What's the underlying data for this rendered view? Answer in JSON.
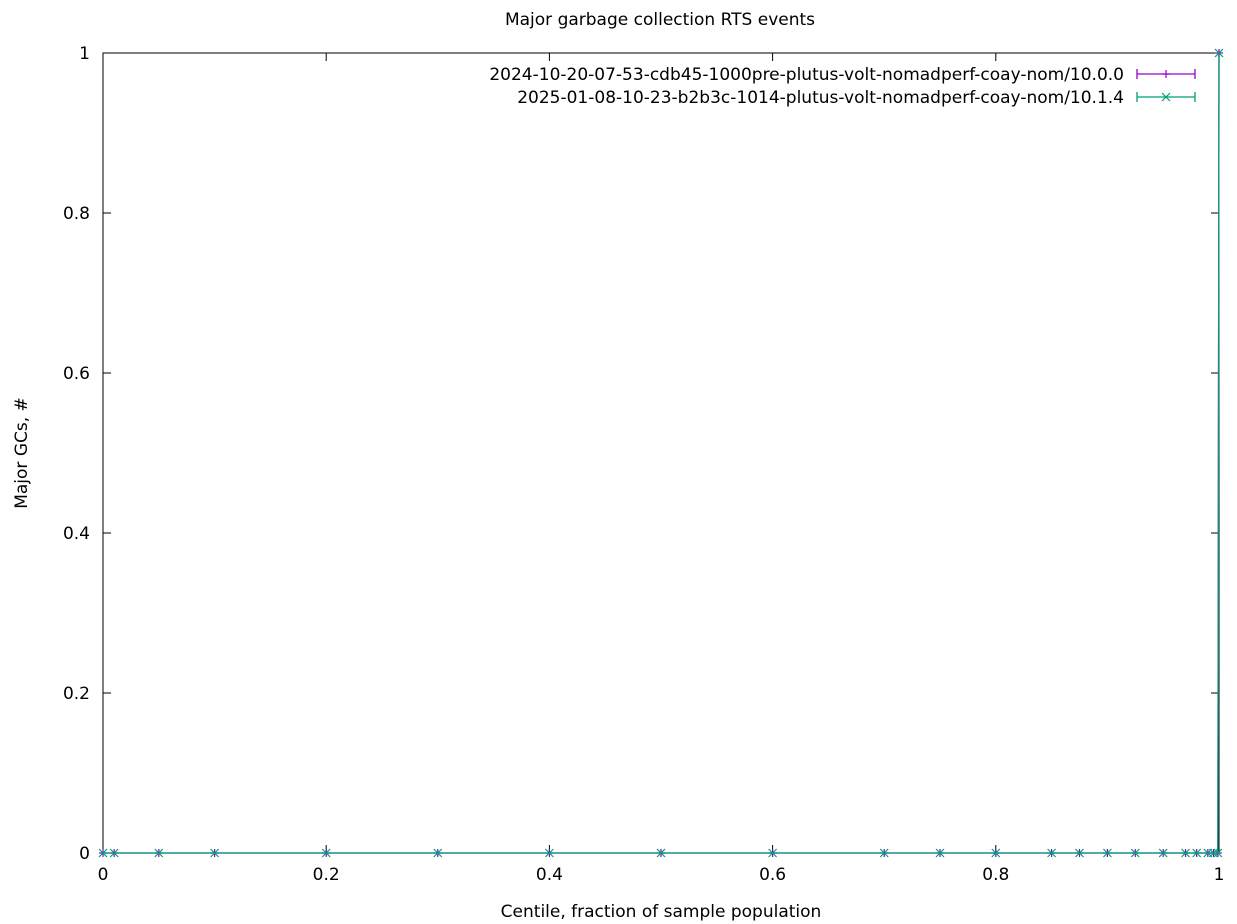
{
  "chart_data": {
    "type": "line",
    "title": "Major garbage collection RTS events",
    "xlabel": "Centile, fraction of sample population",
    "ylabel": "Major GCs, #",
    "xlim": [
      0,
      1
    ],
    "ylim": [
      0,
      1
    ],
    "xticks": [
      "0",
      "0.2",
      "0.4",
      "0.6",
      "0.8",
      "1"
    ],
    "yticks": [
      "0",
      "0.2",
      "0.4",
      "0.6",
      "0.8",
      "1"
    ],
    "grid": false,
    "legend_position": "top-right",
    "x": [
      0.0,
      0.01,
      0.05,
      0.1,
      0.2,
      0.3,
      0.4,
      0.5,
      0.6,
      0.7,
      0.75,
      0.8,
      0.85,
      0.875,
      0.9,
      0.925,
      0.95,
      0.97,
      0.98,
      0.99,
      0.995,
      0.999,
      1.0
    ],
    "series": [
      {
        "name": "2024-10-20-07-53-cdb45-1000pre-plutus-volt-nomadperf-coay-nom/10.0.0",
        "color": "#9400d3",
        "marker": "plus",
        "values": [
          0,
          0,
          0,
          0,
          0,
          0,
          0,
          0,
          0,
          0,
          0,
          0,
          0,
          0,
          0,
          0,
          0,
          0,
          0,
          0,
          0,
          0,
          1
        ]
      },
      {
        "name": "2025-01-08-10-23-b2b3c-1014-plutus-volt-nomadperf-coay-nom/10.1.4",
        "color": "#009e73",
        "marker": "cross",
        "values": [
          0,
          0,
          0,
          0,
          0,
          0,
          0,
          0,
          0,
          0,
          0,
          0,
          0,
          0,
          0,
          0,
          0,
          0,
          0,
          0,
          0,
          0,
          1
        ]
      }
    ]
  }
}
